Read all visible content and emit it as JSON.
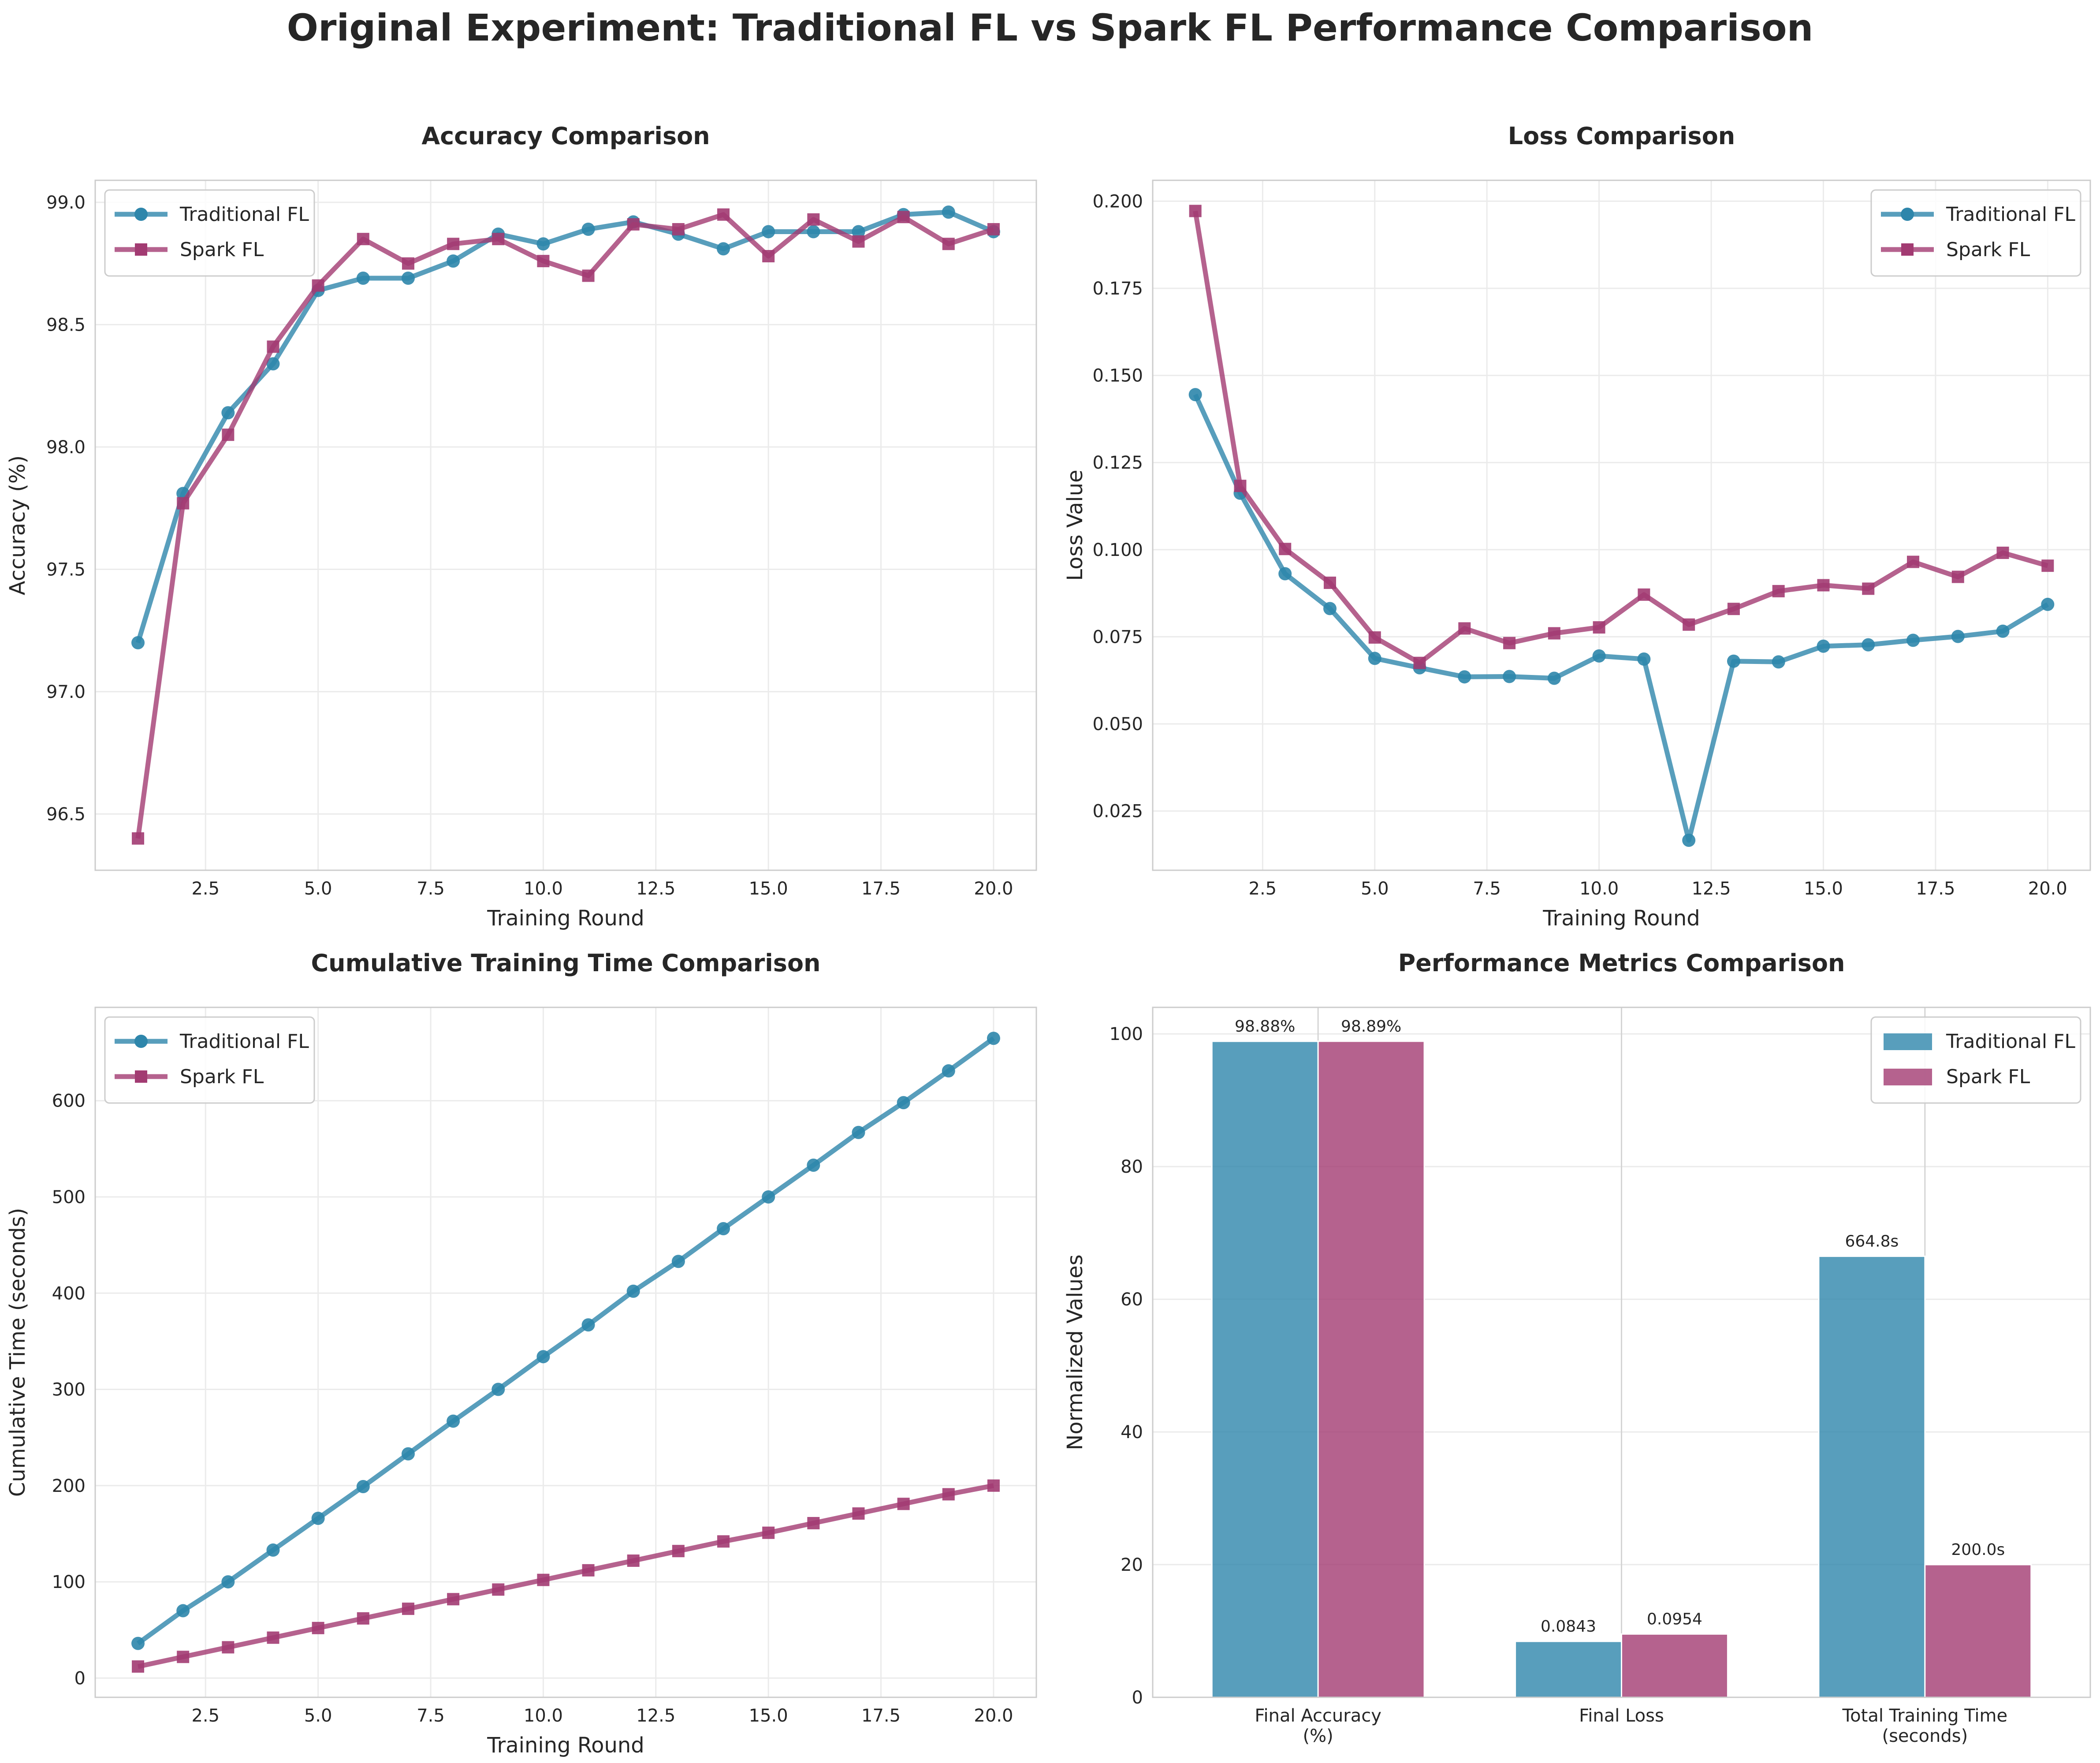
{
  "title": "Original Experiment: Traditional FL vs Spark FL Performance Comparison",
  "colors": {
    "traditional": "#2E86AB",
    "spark": "#A23B72"
  },
  "chart_data": [
    {
      "type": "line",
      "title": "Accuracy Comparison",
      "xlabel": "Training Round",
      "ylabel": "Accuracy (%)",
      "xlim": [
        0.05,
        20.95
      ],
      "ylim": [
        96.27,
        99.09
      ],
      "xticks": [
        "2.5",
        "5.0",
        "7.5",
        "10.0",
        "12.5",
        "15.0",
        "17.5",
        "20.0"
      ],
      "yticks": [
        "96.5",
        "97.0",
        "97.5",
        "98.0",
        "98.5",
        "99.0"
      ],
      "grid": true,
      "legend": "upper left",
      "x": [
        1,
        2,
        3,
        4,
        5,
        6,
        7,
        8,
        9,
        10,
        11,
        12,
        13,
        14,
        15,
        16,
        17,
        18,
        19,
        20
      ],
      "series": [
        {
          "name": "Traditional FL",
          "marker": "circle",
          "values": [
            97.2,
            97.81,
            98.14,
            98.34,
            98.64,
            98.69,
            98.69,
            98.76,
            98.87,
            98.83,
            98.89,
            98.92,
            98.87,
            98.81,
            98.88,
            98.88,
            98.88,
            98.95,
            98.96,
            98.88
          ]
        },
        {
          "name": "Spark FL",
          "marker": "square",
          "values": [
            96.4,
            97.77,
            98.05,
            98.41,
            98.66,
            98.85,
            98.75,
            98.83,
            98.85,
            98.76,
            98.7,
            98.91,
            98.89,
            98.95,
            98.78,
            98.93,
            98.84,
            98.94,
            98.83,
            98.89
          ]
        }
      ]
    },
    {
      "type": "line",
      "title": "Loss Comparison",
      "xlabel": "Training Round",
      "ylabel": "Loss Value",
      "xlim": [
        0.05,
        20.95
      ],
      "ylim": [
        0.008,
        0.206
      ],
      "xticks": [
        "2.5",
        "5.0",
        "7.5",
        "10.0",
        "12.5",
        "15.0",
        "17.5",
        "20.0"
      ],
      "yticks": [
        "0.025",
        "0.050",
        "0.075",
        "0.100",
        "0.125",
        "0.150",
        "0.175",
        "0.200"
      ],
      "grid": true,
      "legend": "upper right",
      "x": [
        1,
        2,
        3,
        4,
        5,
        6,
        7,
        8,
        9,
        10,
        11,
        12,
        13,
        14,
        15,
        16,
        17,
        18,
        19,
        20
      ],
      "series": [
        {
          "name": "Traditional FL",
          "marker": "circle",
          "values": [
            0.1445,
            0.1162,
            0.0931,
            0.0831,
            0.0688,
            0.0661,
            0.0635,
            0.0636,
            0.0631,
            0.0695,
            0.0686,
            0.0166,
            0.068,
            0.0678,
            0.0723,
            0.0727,
            0.074,
            0.0751,
            0.0766,
            0.0843
          ]
        },
        {
          "name": "Spark FL",
          "marker": "square",
          "values": [
            0.1972,
            0.1183,
            0.1002,
            0.0905,
            0.0748,
            0.0675,
            0.0774,
            0.0732,
            0.076,
            0.0777,
            0.0871,
            0.0785,
            0.083,
            0.0881,
            0.0898,
            0.0888,
            0.0965,
            0.0922,
            0.0991,
            0.0954
          ]
        }
      ]
    },
    {
      "type": "line",
      "title": "Cumulative Training Time Comparison",
      "xlabel": "Training Round",
      "ylabel": "Cumulative Time (seconds)",
      "xlim": [
        0.05,
        20.95
      ],
      "ylim": [
        -20,
        697
      ],
      "xticks": [
        "2.5",
        "5.0",
        "7.5",
        "10.0",
        "12.5",
        "15.0",
        "17.5",
        "20.0"
      ],
      "yticks": [
        "0",
        "100",
        "200",
        "300",
        "400",
        "500",
        "600"
      ],
      "grid": true,
      "legend": "upper left",
      "x": [
        1,
        2,
        3,
        4,
        5,
        6,
        7,
        8,
        9,
        10,
        11,
        12,
        13,
        14,
        15,
        16,
        17,
        18,
        19,
        20
      ],
      "series": [
        {
          "name": "Traditional FL",
          "marker": "circle",
          "values": [
            36,
            70,
            100,
            133,
            166,
            199,
            233,
            267,
            300,
            334,
            367,
            402,
            433,
            467,
            500,
            533,
            567,
            598,
            631,
            664.8
          ]
        },
        {
          "name": "Spark FL",
          "marker": "square",
          "values": [
            12,
            22,
            32,
            42,
            52,
            62,
            72,
            82,
            92,
            102,
            112,
            122,
            132,
            142,
            151,
            161,
            171,
            181,
            191,
            200
          ]
        }
      ]
    },
    {
      "type": "bar",
      "title": "Performance Metrics Comparison",
      "xlabel": "",
      "ylabel": "Normalized Values",
      "ylim": [
        0,
        104
      ],
      "yticks": [
        "0",
        "20",
        "40",
        "60",
        "80",
        "100"
      ],
      "grid": true,
      "legend": "upper right",
      "categories": [
        "Final Accuracy\n(%)",
        "Final Loss",
        "Total Training Time\n(seconds)"
      ],
      "series": [
        {
          "name": "Traditional FL",
          "values": [
            98.88,
            8.43,
            66.48
          ],
          "labels": [
            "98.88%",
            "0.0843",
            "664.8s"
          ]
        },
        {
          "name": "Spark FL",
          "values": [
            98.89,
            9.54,
            20.0
          ],
          "labels": [
            "98.89%",
            "0.0954",
            "200.0s"
          ]
        }
      ]
    }
  ]
}
